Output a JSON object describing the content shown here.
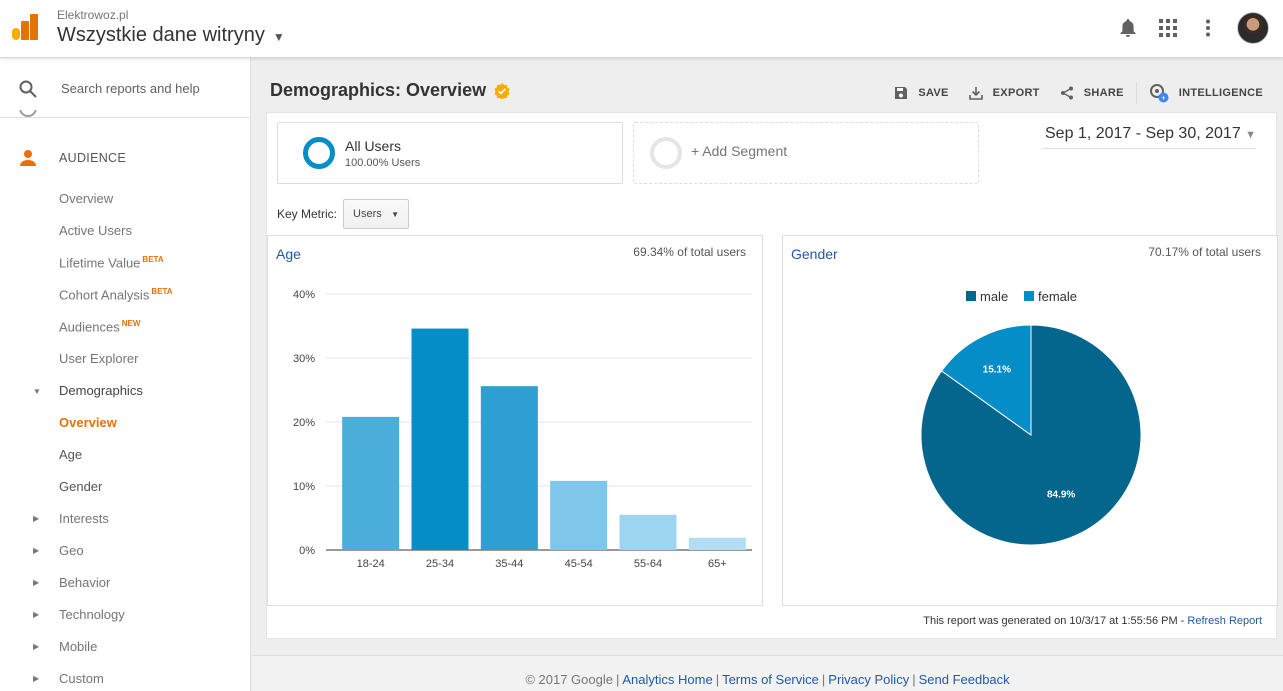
{
  "header": {
    "account": "Elektrowoz.pl",
    "view_name": "Wszystkie dane witryny"
  },
  "sidebar": {
    "search_placeholder": "Search reports and help",
    "section_label": "AUDIENCE",
    "items": [
      {
        "label": "Overview"
      },
      {
        "label": "Active Users"
      },
      {
        "label": "Lifetime Value",
        "badge": "BETA"
      },
      {
        "label": "Cohort Analysis",
        "badge": "BETA"
      },
      {
        "label": "Audiences",
        "badge": "NEW"
      },
      {
        "label": "User Explorer"
      },
      {
        "label": "Demographics"
      },
      {
        "label": "Overview"
      },
      {
        "label": "Age"
      },
      {
        "label": "Gender"
      },
      {
        "label": "Interests"
      },
      {
        "label": "Geo"
      },
      {
        "label": "Behavior"
      },
      {
        "label": "Technology"
      },
      {
        "label": "Mobile"
      },
      {
        "label": "Custom"
      }
    ]
  },
  "main": {
    "title": "Demographics: Overview",
    "actions": {
      "save": "SAVE",
      "export": "EXPORT",
      "share": "SHARE",
      "intelligence": "INTELLIGENCE"
    },
    "segment": {
      "name": "All Users",
      "percent": "100.00% Users",
      "add_label": "+ Add Segment"
    },
    "date_range": "Sep 1, 2017 - Sep 30, 2017",
    "key_metric_label": "Key Metric:",
    "key_metric_value": "Users",
    "age_card": {
      "title": "Age",
      "pct_text": "69.34% of total users"
    },
    "gender_card": {
      "title": "Gender",
      "pct_text": "70.17% of total users"
    },
    "generated_text": "This report was generated on 10/3/17 at 1:55:56 PM - ",
    "refresh_label": "Refresh Report"
  },
  "footer": {
    "copyright": "© 2017 Google",
    "links": [
      "Analytics Home",
      "Terms of Service",
      "Privacy Policy",
      "Send Feedback"
    ]
  },
  "colors": {
    "accent": "#e8710a",
    "link": "#1f5aa6",
    "male": "#05668d",
    "female": "#058dc7"
  },
  "chart_data": [
    {
      "type": "bar",
      "title": "Age",
      "categories": [
        "18-24",
        "25-34",
        "35-44",
        "45-54",
        "55-64",
        "65+"
      ],
      "values": [
        20.8,
        34.6,
        25.6,
        10.8,
        5.5,
        1.9
      ],
      "bar_colors": [
        "#4aaed9",
        "#058dc7",
        "#2d9fd2",
        "#7ec7ea",
        "#9dd4ef",
        "#b3ddf2"
      ],
      "yticks": [
        "0%",
        "10%",
        "20%",
        "30%",
        "40%"
      ],
      "ylim": [
        0,
        40
      ],
      "grid": true
    },
    {
      "type": "pie",
      "title": "Gender",
      "labels": [
        "male",
        "female"
      ],
      "values": [
        84.9,
        15.1
      ],
      "value_labels": [
        "84.9%",
        "15.1%"
      ],
      "colors": [
        "#05668d",
        "#058dc7"
      ],
      "legend": "top"
    }
  ]
}
